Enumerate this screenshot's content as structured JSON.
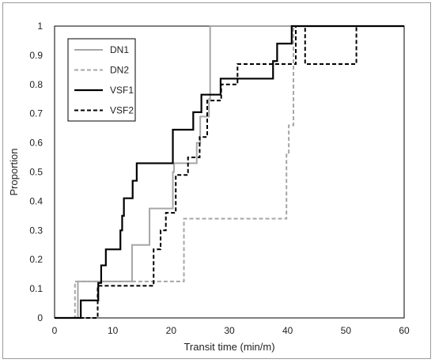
{
  "chart_data": {
    "type": "line",
    "step": true,
    "xlabel": "Transit time (min/m)",
    "ylabel": "Proportion",
    "xlim": [
      0,
      60
    ],
    "ylim": [
      0,
      1
    ],
    "xticks": [
      "0",
      "10",
      "20",
      "30",
      "40",
      "50",
      "60"
    ],
    "yticks": [
      "0",
      "0.1",
      "0.2",
      "0.3",
      "0.4",
      "0.5",
      "0.6",
      "0.7",
      "0.8",
      "0.9",
      "1"
    ],
    "grid": false,
    "legend_position": "top-left",
    "series": [
      {
        "name": "DN1",
        "color": "#a6a6a6",
        "dash": "solid",
        "width": 2,
        "points": [
          [
            0,
            0
          ],
          [
            4,
            0
          ],
          [
            4,
            0.125
          ],
          [
            13.3,
            0.125
          ],
          [
            13.3,
            0.25
          ],
          [
            16.3,
            0.25
          ],
          [
            16.3,
            0.375
          ],
          [
            20.3,
            0.375
          ],
          [
            20.3,
            0.5
          ],
          [
            20.5,
            0.5
          ],
          [
            20.5,
            0.53
          ],
          [
            24.4,
            0.53
          ],
          [
            24.4,
            0.6
          ],
          [
            25,
            0.6
          ],
          [
            25,
            0.69
          ],
          [
            26.5,
            0.69
          ],
          [
            26.5,
            0.75
          ],
          [
            26.7,
            0.75
          ],
          [
            26.7,
            1
          ],
          [
            60,
            1
          ]
        ]
      },
      {
        "name": "DN2",
        "color": "#a6a6a6",
        "dash": "dashed",
        "width": 2,
        "points": [
          [
            0,
            0
          ],
          [
            3.5,
            0
          ],
          [
            3.5,
            0.125
          ],
          [
            22.2,
            0.125
          ],
          [
            22.2,
            0.34
          ],
          [
            39.8,
            0.34
          ],
          [
            39.8,
            0.56
          ],
          [
            40.2,
            0.56
          ],
          [
            40.2,
            0.66
          ],
          [
            41,
            0.66
          ],
          [
            41,
            1
          ],
          [
            60,
            1
          ]
        ]
      },
      {
        "name": "VSF1",
        "color": "#000000",
        "dash": "solid",
        "width": 2.2,
        "points": [
          [
            0,
            0
          ],
          [
            4.5,
            0
          ],
          [
            4.5,
            0.06
          ],
          [
            7.5,
            0.06
          ],
          [
            7.5,
            0.12
          ],
          [
            8,
            0.12
          ],
          [
            8,
            0.18
          ],
          [
            8.8,
            0.18
          ],
          [
            8.8,
            0.235
          ],
          [
            11.3,
            0.235
          ],
          [
            11.3,
            0.3
          ],
          [
            11.6,
            0.3
          ],
          [
            11.6,
            0.35
          ],
          [
            11.9,
            0.35
          ],
          [
            11.9,
            0.41
          ],
          [
            13.4,
            0.41
          ],
          [
            13.4,
            0.47
          ],
          [
            14.1,
            0.47
          ],
          [
            14.1,
            0.53
          ],
          [
            20.3,
            0.53
          ],
          [
            20.3,
            0.645
          ],
          [
            23.8,
            0.645
          ],
          [
            23.8,
            0.705
          ],
          [
            25.2,
            0.705
          ],
          [
            25.2,
            0.765
          ],
          [
            28.5,
            0.765
          ],
          [
            28.5,
            0.82
          ],
          [
            37.5,
            0.82
          ],
          [
            37.5,
            0.88
          ],
          [
            38.2,
            0.88
          ],
          [
            38.2,
            0.94
          ],
          [
            40.7,
            0.94
          ],
          [
            40.7,
            1
          ],
          [
            60,
            1
          ]
        ]
      },
      {
        "name": "VSF2",
        "color": "#000000",
        "dash": "dashed",
        "width": 2,
        "points": [
          [
            0,
            0
          ],
          [
            7.4,
            0
          ],
          [
            7.4,
            0.11
          ],
          [
            17,
            0.11
          ],
          [
            17,
            0.235
          ],
          [
            18.2,
            0.235
          ],
          [
            18.2,
            0.3
          ],
          [
            19.1,
            0.3
          ],
          [
            19.1,
            0.36
          ],
          [
            20.8,
            0.36
          ],
          [
            20.8,
            0.49
          ],
          [
            22.9,
            0.49
          ],
          [
            22.9,
            0.55
          ],
          [
            24.9,
            0.55
          ],
          [
            24.9,
            0.62
          ],
          [
            26.2,
            0.62
          ],
          [
            26.2,
            0.745
          ],
          [
            28.6,
            0.745
          ],
          [
            28.6,
            0.8
          ],
          [
            31.4,
            0.8
          ],
          [
            31.4,
            0.87
          ],
          [
            41.4,
            0.87
          ],
          [
            41.4,
            1
          ],
          [
            43,
            1
          ],
          [
            43,
            0.87
          ],
          [
            51.8,
            0.87
          ],
          [
            51.8,
            1
          ],
          [
            60,
            1
          ]
        ]
      }
    ]
  }
}
